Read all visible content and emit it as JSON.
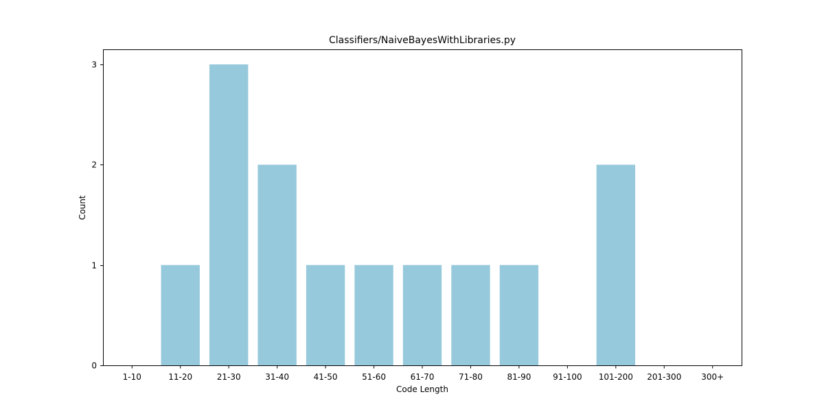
{
  "colors": {
    "bar": "#96c9dc",
    "axis": "#000000",
    "background": "#ffffff"
  },
  "chart_data": {
    "type": "bar",
    "title": "Classifiers/NaiveBayesWithLibraries.py",
    "xlabel": "Code Length",
    "ylabel": "Count",
    "categories": [
      "1-10",
      "11-20",
      "21-30",
      "31-40",
      "41-50",
      "51-60",
      "61-70",
      "71-80",
      "81-90",
      "91-100",
      "101-200",
      "201-300",
      "300+"
    ],
    "values": [
      0,
      1,
      3,
      2,
      1,
      1,
      1,
      1,
      1,
      0,
      2,
      0,
      0
    ],
    "ylim": [
      0,
      3.15
    ],
    "yticks": [
      0,
      1,
      2,
      3
    ],
    "grid": false,
    "legend": "none"
  }
}
